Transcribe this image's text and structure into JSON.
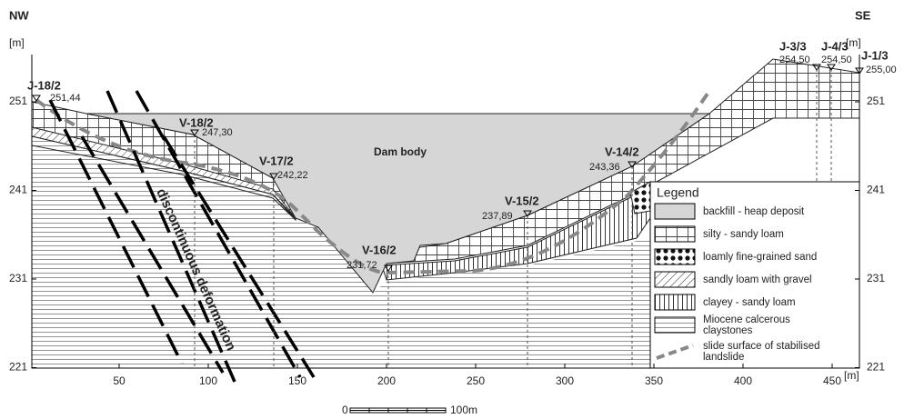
{
  "header": {
    "left": "NW",
    "right": "SE"
  },
  "axes": {
    "y_unit_left": "[m]",
    "y_unit_right": "[m]",
    "x_unit": "[m]",
    "y_ticks": [
      251,
      241,
      231,
      221
    ],
    "x_ticks": [
      50,
      100,
      150,
      200,
      250,
      300,
      350,
      400,
      450
    ]
  },
  "labels": {
    "dam_body": "Dam body",
    "deformation": "discontinuous deformation"
  },
  "boreholes": [
    {
      "name": "J-18/2",
      "elevation": "251,44"
    },
    {
      "name": "V-18/2",
      "elevation": "247,30"
    },
    {
      "name": "V-17/2",
      "elevation": "242,22"
    },
    {
      "name": "V-16/2",
      "elevation": "231,72"
    },
    {
      "name": "V-15/2",
      "elevation": "237,89"
    },
    {
      "name": "V-14/2",
      "elevation": "243,36"
    },
    {
      "name": "J-3/3",
      "elevation": "254,50"
    },
    {
      "name": "J-4/3",
      "elevation": "254,50"
    },
    {
      "name": "J-1/3",
      "elevation": "255,00"
    }
  ],
  "legend": {
    "title": "Legend",
    "items": [
      {
        "label": [
          "backfill - heap deposit"
        ]
      },
      {
        "label": [
          "silty - sandy loam"
        ]
      },
      {
        "label": [
          "loamly fine-grained sand"
        ]
      },
      {
        "label": [
          "sandly loam with gravel"
        ]
      },
      {
        "label": [
          "clayey - sandy loam"
        ]
      },
      {
        "label": [
          "Miocene calcerous",
          "claystones"
        ]
      },
      {
        "label": [
          "slide surface of stabilised",
          "landslide"
        ]
      }
    ]
  },
  "scale_bar": {
    "start": "0",
    "end": "100m"
  }
}
